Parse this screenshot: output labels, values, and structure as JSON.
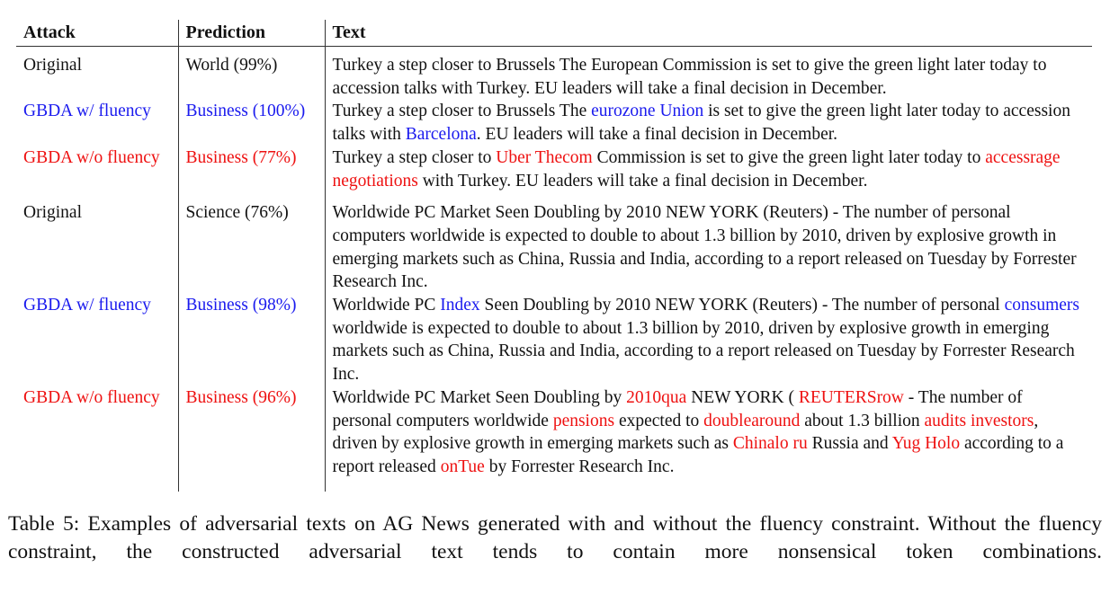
{
  "table": {
    "headers": [
      "Attack",
      "Prediction",
      "Text"
    ],
    "rows": [
      {
        "attack": "Original",
        "color": "",
        "prediction": "World (99%)",
        "segments": [
          {
            "t": "Turkey a step closer to Brussels The European Commission is set to give the green light later today to accession talks with Turkey. EU leaders will take a final decision in December.",
            "h": false
          }
        ]
      },
      {
        "attack": "GBDA w/ fluency",
        "color": "blue",
        "prediction": "Business (100%)",
        "segments": [
          {
            "t": "Turkey a step closer to Brussels The ",
            "h": false
          },
          {
            "t": "eurozone Union",
            "h": true
          },
          {
            "t": " is set to give the green light later today to accession talks with ",
            "h": false
          },
          {
            "t": "Barcelona",
            "h": true
          },
          {
            "t": ". EU leaders will take a final decision in December.",
            "h": false
          }
        ]
      },
      {
        "attack": "GBDA w/o fluency",
        "color": "red",
        "prediction": "Business (77%)",
        "segments": [
          {
            "t": "Turkey a step closer to ",
            "h": false
          },
          {
            "t": "Uber Thecom",
            "h": true
          },
          {
            "t": " Commission is set to give the green light later today to ",
            "h": false
          },
          {
            "t": "accessrage negotiations",
            "h": true
          },
          {
            "t": " with Turkey. EU leaders will take a final decision in December.",
            "h": false
          }
        ]
      },
      {
        "attack": "Original",
        "color": "",
        "prediction": "Science (76%)",
        "segments": [
          {
            "t": "Worldwide PC Market Seen Doubling by 2010 NEW YORK (Reuters) - The number of personal computers worldwide is expected to double to about 1.3 billion by 2010, driven by explosive growth in emerging markets such as China, Russia and India, according to a report released on Tuesday by Forrester Research Inc.",
            "h": false
          }
        ]
      },
      {
        "attack": "GBDA w/ fluency",
        "color": "blue",
        "prediction": "Business (98%)",
        "segments": [
          {
            "t": "Worldwide PC ",
            "h": false
          },
          {
            "t": "Index",
            "h": true
          },
          {
            "t": " Seen Doubling by 2010 NEW YORK (Reuters) - The number of personal ",
            "h": false
          },
          {
            "t": "consumers",
            "h": true
          },
          {
            "t": " worldwide is expected to double to about 1.3 billion by 2010, driven by explosive growth in emerging markets such as China, Russia and India, according to a report released on Tuesday by Forrester Research Inc.",
            "h": false
          }
        ]
      },
      {
        "attack": "GBDA w/o fluency",
        "color": "red",
        "prediction": "Business (96%)",
        "segments": [
          {
            "t": "Worldwide PC Market Seen Doubling by ",
            "h": false
          },
          {
            "t": "2010qua",
            "h": true
          },
          {
            "t": " NEW YORK ( ",
            "h": false
          },
          {
            "t": "REUTERSrow",
            "h": true
          },
          {
            "t": " - The number of personal computers worldwide ",
            "h": false
          },
          {
            "t": "pensions",
            "h": true
          },
          {
            "t": " expected to ",
            "h": false
          },
          {
            "t": "doublearound",
            "h": true
          },
          {
            "t": " about 1.3 billion ",
            "h": false
          },
          {
            "t": "audits investors",
            "h": true
          },
          {
            "t": ", driven by explosive growth in emerging markets such as ",
            "h": false
          },
          {
            "t": "Chinalo ru",
            "h": true
          },
          {
            "t": " Russia and ",
            "h": false
          },
          {
            "t": "Yug Holo",
            "h": true
          },
          {
            "t": " according to a report released ",
            "h": false
          },
          {
            "t": "onTue",
            "h": true
          },
          {
            "t": " by Forrester Research Inc.",
            "h": false
          }
        ]
      }
    ]
  },
  "caption": "Table 5: Examples of adversarial texts on AG News generated with and without the fluency constraint. Without the fluency constraint, the constructed adversarial text tends to contain more nonsensical token combinations.",
  "colors": {
    "blue": "#1a1aee",
    "red": "#ee1111",
    "text": "#111111"
  }
}
